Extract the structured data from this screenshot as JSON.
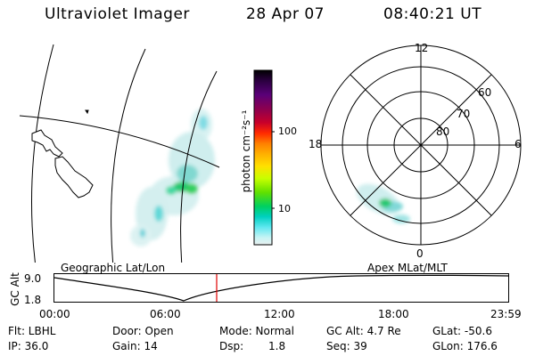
{
  "header": {
    "title": "Ultraviolet Imager",
    "date": "28 Apr 07",
    "time": "08:40:21 UT"
  },
  "colorbar": {
    "unit_label": "photon cm⁻²s⁻¹",
    "ticks": [
      "100",
      "10"
    ],
    "colors": [
      "#000000",
      "#2b0040",
      "#5a0078",
      "#8b0050",
      "#c8002a",
      "#ff2a00",
      "#ff8000",
      "#ffb000",
      "#ffe000",
      "#c8ff00",
      "#60e000",
      "#00d060",
      "#00d0c0",
      "#60e8f0",
      "#c8f4f4",
      "#e8f0f0"
    ]
  },
  "polar_plot": {
    "mlt_labels": {
      "top": "12",
      "right": "6",
      "bottom": "0",
      "left": "18"
    },
    "lat_labels": [
      "60",
      "70",
      "80"
    ]
  },
  "map_panel": {
    "label": "Geographic Lat/Lon"
  },
  "polar_panel": {
    "label": "Apex MLat/MLT"
  },
  "altitude_strip": {
    "axis_title": "GC Alt",
    "ytick_top": "9.0",
    "ytick_bottom": "1.8",
    "xticks": [
      "00:00",
      "06:00",
      "12:00",
      "18:00",
      "23:59"
    ],
    "marker_color": "#e00000"
  },
  "info": {
    "flt": "Flt: LBHL",
    "door": "Door: Open",
    "mode": "Mode: Normal",
    "gc_alt": "GC Alt: 4.7 Re",
    "glat": "GLat: -50.6",
    "ip": "IP: 36.0",
    "gain": "Gain: 14",
    "dsp_label": "Dsp:",
    "dsp_value": "1.8",
    "seq": "Seq: 39",
    "glon": "GLon: 176.6"
  }
}
